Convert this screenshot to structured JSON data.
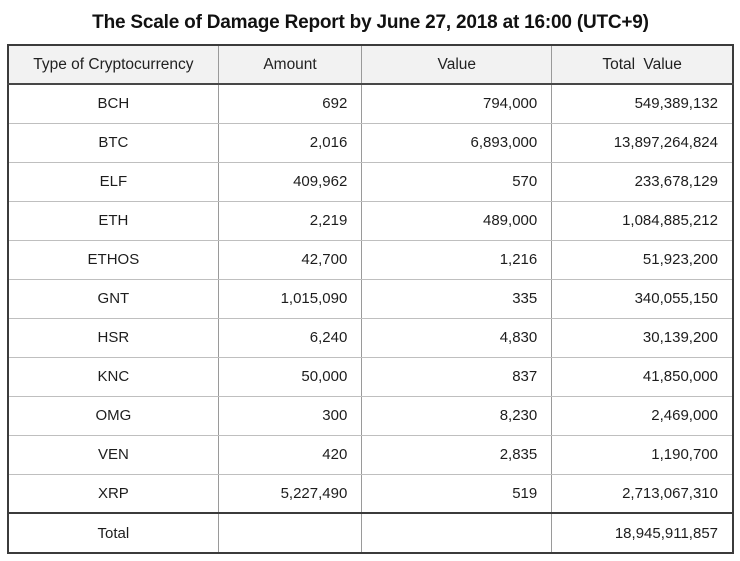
{
  "title": "The Scale of Damage Report by June 27, 2018 at 16:00 (UTC+9)",
  "chart_data": {
    "type": "table",
    "title": "The Scale of Damage Report by June 27, 2018 at 16:00 (UTC+9)",
    "columns": [
      "Type of Cryptocurrency",
      "Amount",
      "Value",
      "Total Value"
    ],
    "rows": [
      {
        "type": "BCH",
        "amount": "692",
        "value": "794,000",
        "total_value": "549,389,132"
      },
      {
        "type": "BTC",
        "amount": "2,016",
        "value": "6,893,000",
        "total_value": "13,897,264,824"
      },
      {
        "type": "ELF",
        "amount": "409,962",
        "value": "570",
        "total_value": "233,678,129"
      },
      {
        "type": "ETH",
        "amount": "2,219",
        "value": "489,000",
        "total_value": "1,084,885,212"
      },
      {
        "type": "ETHOS",
        "amount": "42,700",
        "value": "1,216",
        "total_value": "51,923,200"
      },
      {
        "type": "GNT",
        "amount": "1,015,090",
        "value": "335",
        "total_value": "340,055,150"
      },
      {
        "type": "HSR",
        "amount": "6,240",
        "value": "4,830",
        "total_value": "30,139,200"
      },
      {
        "type": "KNC",
        "amount": "50,000",
        "value": "837",
        "total_value": "41,850,000"
      },
      {
        "type": "OMG",
        "amount": "300",
        "value": "8,230",
        "total_value": "2,469,000"
      },
      {
        "type": "VEN",
        "amount": "420",
        "value": "2,835",
        "total_value": "1,190,700"
      },
      {
        "type": "XRP",
        "amount": "5,227,490",
        "value": "519",
        "total_value": "2,713,067,310"
      }
    ],
    "footer": {
      "label": "Total",
      "amount": "",
      "value": "",
      "total_value": "18,945,911,857"
    }
  }
}
